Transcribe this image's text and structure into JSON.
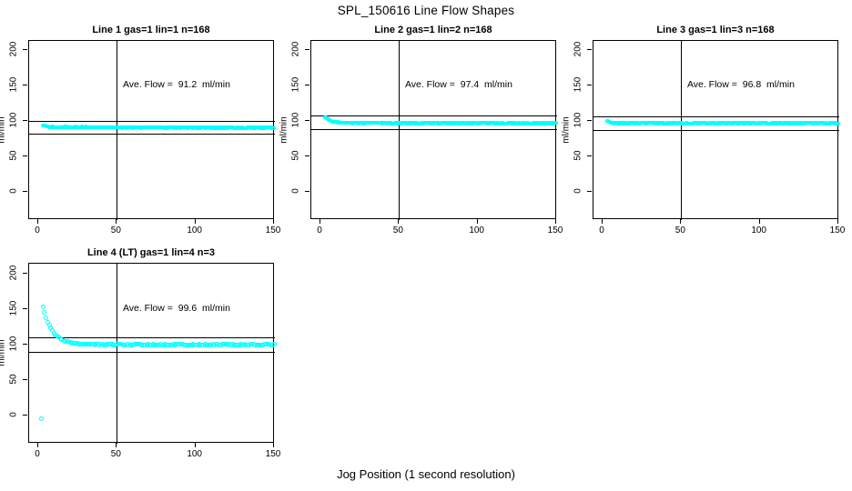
{
  "colors": {
    "point": "#00FFFF",
    "axis": "#000000",
    "background": "#FFFFFF"
  },
  "chart_data": {
    "type": "scatter",
    "title": "SPL_150616  Line Flow Shapes",
    "xlabel": "Jog Position (1 second resolution)",
    "ylabel": "ml/min",
    "grid": false,
    "legend": "none",
    "x_ticks": [
      0,
      50,
      100,
      150
    ],
    "y_ticks": [
      0,
      50,
      100,
      150,
      200
    ],
    "xlim": [
      -6,
      151
    ],
    "ylim": [
      -40,
      212
    ],
    "point_style": "open-circle",
    "panels": [
      {
        "title": "Line 1 gas=1 lin=1 n=168",
        "ave_flow_ml_min": 91.2,
        "annotation": "Ave. Flow =  91.2  ml/min",
        "vline_x": 50,
        "ref_lines_y": [
          100.3,
          82.1
        ],
        "profile": {
          "x_start": 3,
          "x_end": 150,
          "step": 0.5,
          "settle": 91.0,
          "amp": 2.8,
          "tau": 2.5,
          "slope": -0.006,
          "noise": 0.7,
          "seed": 101
        },
        "extra_points": [],
        "point_size": 4
      },
      {
        "title": "Line 2 gas=1 lin=2 n=168",
        "ave_flow_ml_min": 97.4,
        "annotation": "Ave. Flow =  97.4  ml/min",
        "vline_x": 50,
        "ref_lines_y": [
          107.1,
          87.7
        ],
        "profile": {
          "x_start": 3,
          "x_end": 150,
          "step": 0.5,
          "settle": 96.9,
          "amp": 9.0,
          "tau": 3.5,
          "slope": -0.003,
          "noise": 0.6,
          "seed": 202
        },
        "extra_points": [],
        "point_size": 4
      },
      {
        "title": "Line 3 gas=1 lin=3 n=168",
        "ave_flow_ml_min": 96.8,
        "annotation": "Ave. Flow =  96.8  ml/min",
        "vline_x": 50,
        "ref_lines_y": [
          106.5,
          87.1
        ],
        "profile": {
          "x_start": 3,
          "x_end": 150,
          "step": 0.5,
          "settle": 96.6,
          "amp": 3.0,
          "tau": 2.0,
          "slope": 0.0,
          "noise": 0.8,
          "seed": 303
        },
        "extra_points": [],
        "point_size": 4
      },
      {
        "title": "Line 4 (LT) gas=1 lin=4 n=3",
        "ave_flow_ml_min": 99.6,
        "annotation": "Ave. Flow =  99.6  ml/min",
        "vline_x": 50,
        "ref_lines_y": [
          109.6,
          89.6
        ],
        "profile": {
          "x_start": 3,
          "x_end": 150,
          "step": 1.0,
          "settle": 99.7,
          "amp": 53.0,
          "tau": 6.0,
          "slope": -0.001,
          "noise": 0.5,
          "seed": 404
        },
        "extra_points": [
          [
            2,
            -4
          ]
        ],
        "point_size": 5
      }
    ]
  }
}
